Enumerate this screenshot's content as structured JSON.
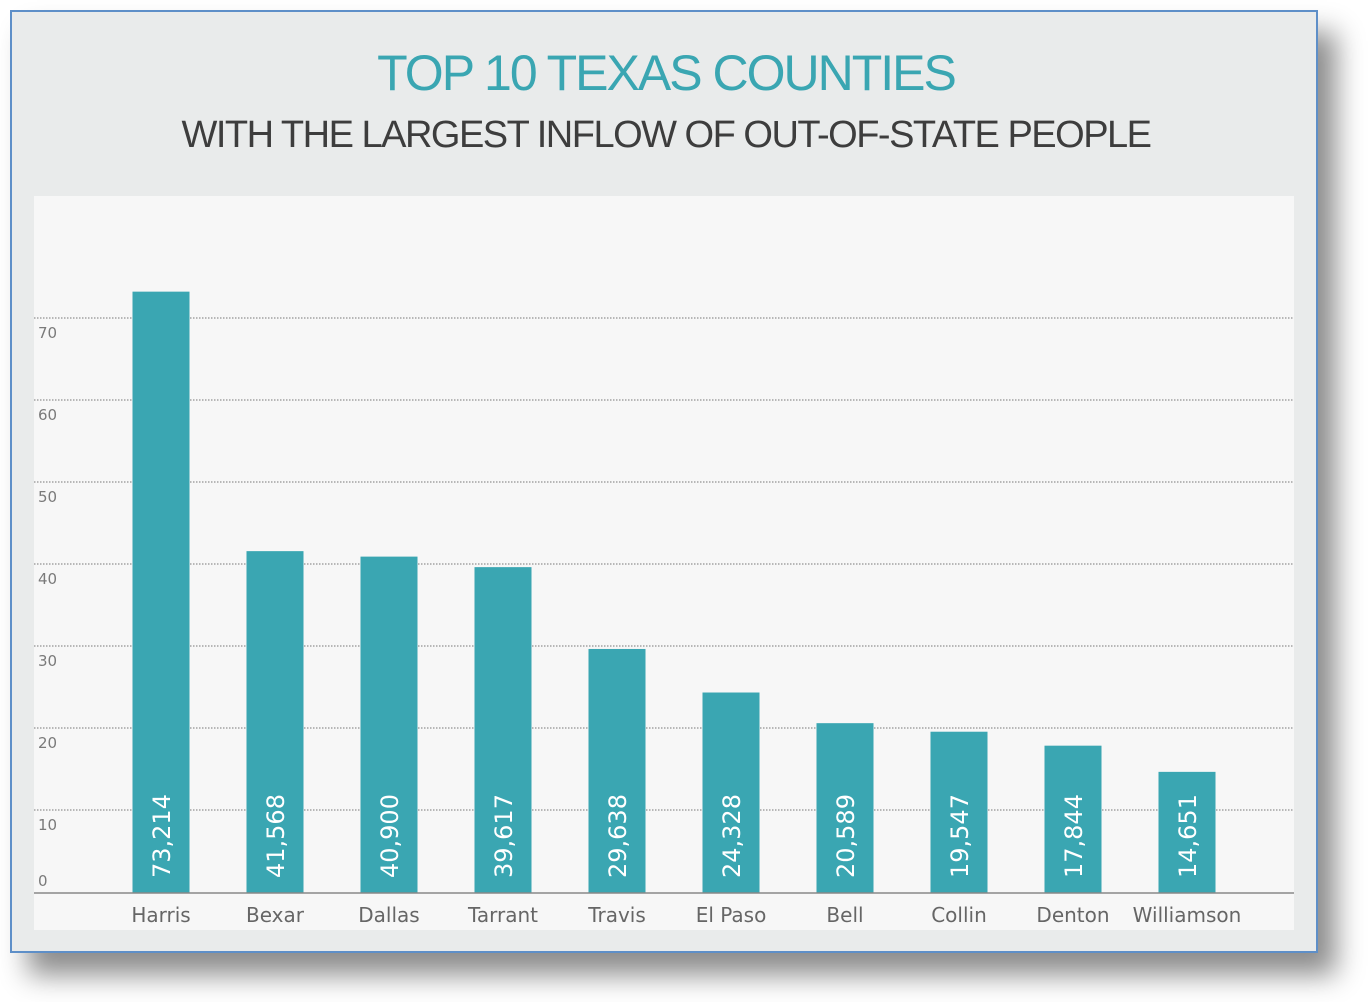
{
  "chart_data": {
    "type": "bar",
    "title": "TOP 10 TEXAS COUNTIES",
    "subtitle": "WITH THE LARGEST INFLOW OF OUT-OF-STATE PEOPLE",
    "xlabel": "",
    "ylabel": "",
    "categories": [
      "Harris",
      "Bexar",
      "Dallas",
      "Tarrant",
      "Travis",
      "El Paso",
      "Bell",
      "Collin",
      "Denton",
      "Williamson"
    ],
    "values": [
      73.214,
      41.568,
      40.9,
      39.617,
      29.638,
      24.328,
      20.589,
      19.547,
      17.844,
      14.651
    ],
    "value_labels": [
      "73,214",
      "41,568",
      "40,900",
      "39,617",
      "29,638",
      "24,328",
      "20,589",
      "19,547",
      "17,844",
      "14,651"
    ],
    "yticks": [
      "0",
      "10",
      "20",
      "30",
      "40",
      "50",
      "60",
      "70"
    ],
    "ylim": [
      0,
      70
    ],
    "grid": true,
    "colors": {
      "bar": "#3aa6b2",
      "title": "#3aa6b2",
      "panel": "#f7f7f7",
      "frame": "#5e8fc8"
    }
  }
}
